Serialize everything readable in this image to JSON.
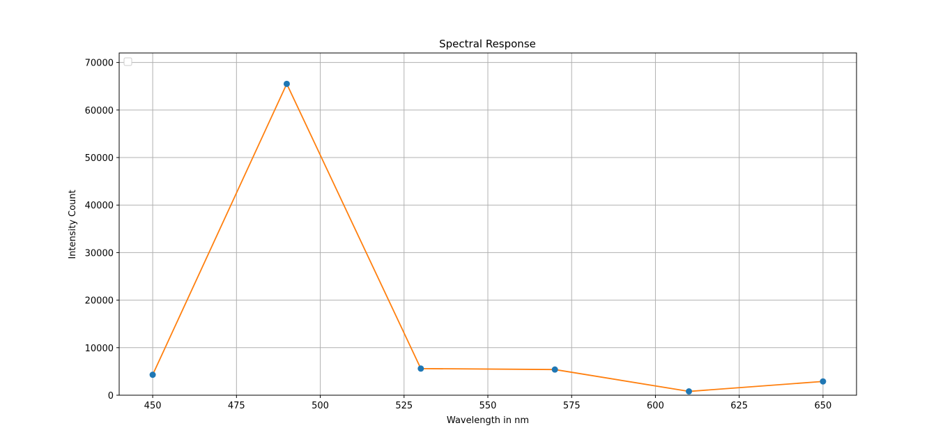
{
  "chart_data": {
    "type": "line",
    "title": "Spectral Response",
    "xlabel": "Wavelength in nm",
    "ylabel": "Intensity Count",
    "xlim": [
      440,
      660
    ],
    "ylim": [
      0,
      72000
    ],
    "x_ticks": [
      450,
      475,
      500,
      525,
      550,
      575,
      600,
      625,
      650
    ],
    "y_ticks": [
      0,
      10000,
      20000,
      30000,
      40000,
      50000,
      60000,
      70000
    ],
    "grid": true,
    "legend": {
      "placement": "top-left",
      "entries": []
    },
    "series": [
      {
        "style": "markers",
        "color": "#1f77b4",
        "x": [
          450,
          490,
          530,
          570,
          610,
          650
        ],
        "y": [
          4300,
          65500,
          5600,
          5400,
          800,
          2900
        ]
      },
      {
        "style": "line",
        "color": "#ff7f0e",
        "x": [
          450,
          490,
          530,
          570,
          610,
          650
        ],
        "y": [
          4300,
          65500,
          5600,
          5400,
          800,
          2900
        ]
      }
    ]
  }
}
